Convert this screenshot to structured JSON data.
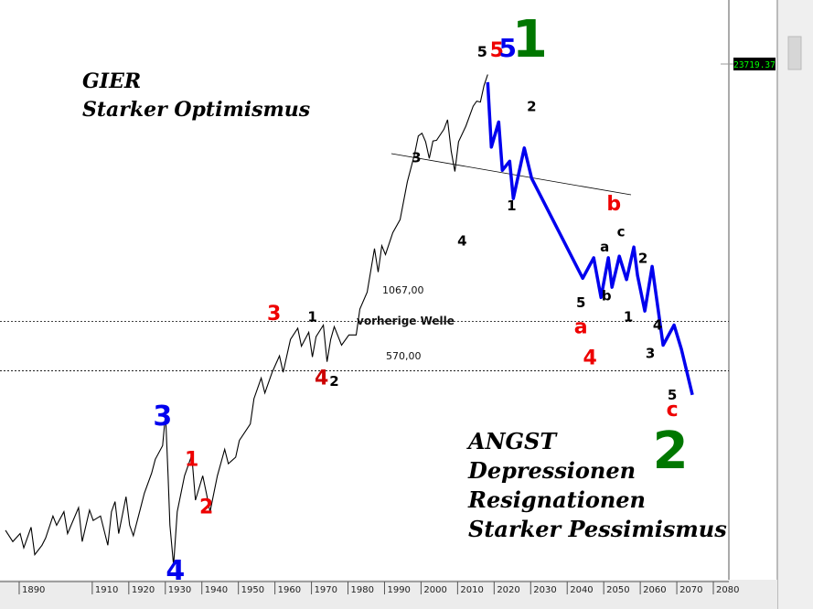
{
  "price_box": {
    "value": "23719.37"
  },
  "chart_data": {
    "type": "line",
    "title": "",
    "xlabel": "",
    "ylabel": "",
    "xlim": [
      1886,
      2084
    ],
    "ylim": [
      40,
      40000
    ],
    "y_scale": "log",
    "grid": false,
    "x_ticks": [
      "1890",
      "1910",
      "1920",
      "1930",
      "1940",
      "1950",
      "1960",
      "1970",
      "1980",
      "1990",
      "2000",
      "2010",
      "2020",
      "2030",
      "2040",
      "2050",
      "2060",
      "2070",
      "2080"
    ],
    "series": [
      {
        "color": "#000000",
        "x": [
          1886,
          1888,
          1890,
          1891,
          1893,
          1894,
          1896,
          1897,
          1899,
          1900,
          1902,
          1903,
          1906,
          1907,
          1909,
          1910,
          1912,
          1914,
          1915,
          1916,
          1917,
          1919,
          1920,
          1921,
          1923,
          1924,
          1926,
          1927,
          1929,
          1929.8,
          1930.5,
          1931,
          1932,
          1933,
          1935,
          1937,
          1938,
          1940,
          1941,
          1942,
          1944,
          1946,
          1947,
          1949,
          1950,
          1953,
          1954,
          1956,
          1957,
          1959,
          1961,
          1962,
          1964,
          1966,
          1967,
          1969,
          1970,
          1971,
          1973,
          1974,
          1975,
          1976,
          1978,
          1980,
          1982,
          1983,
          1985,
          1987,
          1988,
          1989,
          1990,
          1992,
          1994,
          1996,
          1998,
          1999,
          2000,
          2001,
          2002,
          2003,
          2004,
          2006,
          2007,
          2008,
          2009,
          2010,
          2012,
          2014,
          2015,
          2016,
          2017,
          2018
        ],
        "y": [
          75,
          65,
          72,
          60,
          78,
          55,
          62,
          68,
          90,
          80,
          95,
          72,
          100,
          65,
          97,
          85,
          90,
          62,
          95,
          108,
          72,
          115,
          80,
          70,
          100,
          120,
          155,
          185,
          220,
          330,
          150,
          80,
          48,
          95,
          150,
          195,
          110,
          150,
          120,
          95,
          150,
          210,
          175,
          190,
          235,
          290,
          400,
          520,
          430,
          560,
          690,
          560,
          850,
          980,
          780,
          930,
          680,
          880,
          1020,
          640,
          850,
          1000,
          790,
          900,
          900,
          1250,
          1550,
          2700,
          2000,
          2800,
          2500,
          3300,
          3900,
          6300,
          9000,
          11300,
          11700,
          10500,
          8500,
          10600,
          10700,
          12300,
          13900,
          9300,
          7200,
          10500,
          12800,
          16500,
          17600,
          17400,
          21500,
          24700
        ]
      }
    ],
    "projection": {
      "color": "#0000ee",
      "x": [
        2018,
        2019,
        2021,
        2022,
        2024,
        2025,
        2028,
        2030,
        2044,
        2047,
        2049,
        2051,
        2052,
        2054,
        2056,
        2058,
        2059,
        2061,
        2063,
        2066,
        2069,
        2071,
        2074
      ],
      "y": [
        22400,
        9800,
        13500,
        7300,
        8200,
        5100,
        9700,
        6600,
        1850,
        2400,
        1450,
        2400,
        1650,
        2450,
        1820,
        2750,
        1920,
        1220,
        2150,
        790,
        1020,
        750,
        420
      ]
    }
  },
  "reference_lines": {
    "upper": {
      "label": "1067,00",
      "value": 1067
    },
    "lower": {
      "label": "570,00",
      "value": 570
    },
    "note": "vorherige Welle"
  },
  "texts": {
    "greed": [
      "GIER",
      "Starker Optimismus"
    ],
    "fear": [
      "ANGST",
      "Depressionen",
      "Resignationen",
      "Starker Pessimismus"
    ]
  },
  "wave_labels": [
    {
      "text": "4",
      "color": "#cc0000",
      "x": 1972.5,
      "y": 480,
      "size": 22
    },
    {
      "text": "5",
      "color": "#000000",
      "x": 2016.5,
      "y": 31000,
      "size": 16
    },
    {
      "text": "5",
      "color": "#ee0000",
      "x": 2020.5,
      "y": 31000,
      "size": 22
    },
    {
      "text": "5",
      "color": "#0000ee",
      "x": 2023.5,
      "y": 31000,
      "size": 28
    },
    {
      "text": "1",
      "color": "#007700",
      "x": 2029.5,
      "y": 31000,
      "size": 56
    },
    {
      "text": "2",
      "color": "#000000",
      "x": 2030,
      "y": 15500,
      "size": 15
    },
    {
      "text": "1",
      "color": "#000000",
      "x": 2024.5,
      "y": 4400,
      "size": 15
    },
    {
      "text": "3",
      "color": "#000000",
      "x": 1998.5,
      "y": 8100,
      "size": 15
    },
    {
      "text": "4",
      "color": "#000000",
      "x": 2011,
      "y": 2800,
      "size": 15
    },
    {
      "text": "b",
      "color": "#ee0000",
      "x": 2052.5,
      "y": 4400,
      "size": 22
    },
    {
      "text": "c",
      "color": "#000000",
      "x": 2054.5,
      "y": 3150,
      "size": 15
    },
    {
      "text": "a",
      "color": "#000000",
      "x": 2050,
      "y": 2600,
      "size": 15
    },
    {
      "text": "2",
      "color": "#000000",
      "x": 2060.5,
      "y": 2250,
      "size": 15
    },
    {
      "text": "5",
      "color": "#000000",
      "x": 2043.5,
      "y": 1280,
      "size": 15
    },
    {
      "text": "a",
      "color": "#ee0000",
      "x": 2043.5,
      "y": 920,
      "size": 22
    },
    {
      "text": "b",
      "color": "#000000",
      "x": 2050.5,
      "y": 1400,
      "size": 15
    },
    {
      "text": "1",
      "color": "#000000",
      "x": 2056.5,
      "y": 1070,
      "size": 15
    },
    {
      "text": "4",
      "color": "#000000",
      "x": 2064.5,
      "y": 960,
      "size": 15
    },
    {
      "text": "3",
      "color": "#000000",
      "x": 2062.5,
      "y": 670,
      "size": 15
    },
    {
      "text": "5",
      "color": "#000000",
      "x": 2068.5,
      "y": 395,
      "size": 15
    },
    {
      "text": "c",
      "color": "#ee0000",
      "x": 2068.5,
      "y": 320,
      "size": 22
    },
    {
      "text": "2",
      "color": "#007700",
      "x": 2068,
      "y": 165,
      "size": 56
    },
    {
      "text": "3",
      "color": "#ee0000",
      "x": 1959.5,
      "y": 1090,
      "size": 22
    },
    {
      "text": "1",
      "color": "#000000",
      "x": 1970,
      "y": 1070,
      "size": 15
    },
    {
      "text": "2",
      "color": "#000000",
      "x": 1976,
      "y": 470,
      "size": 15
    },
    {
      "text": "4",
      "color": "#ee0000",
      "x": 2046,
      "y": 620,
      "size": 22
    },
    {
      "text": "3",
      "color": "#0000ee",
      "x": 1929,
      "y": 285,
      "size": 30
    },
    {
      "text": "1",
      "color": "#ee0000",
      "x": 1937,
      "y": 170,
      "size": 22
    },
    {
      "text": "2",
      "color": "#ee0000",
      "x": 1941,
      "y": 93,
      "size": 22
    },
    {
      "text": "4",
      "color": "#0000ee",
      "x": 1932.5,
      "y": 40,
      "size": 30
    }
  ]
}
